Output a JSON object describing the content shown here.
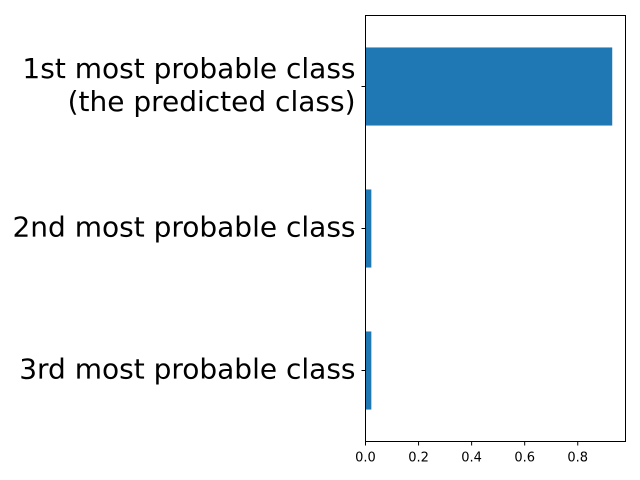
{
  "chart_data": {
    "type": "bar",
    "orientation": "horizontal",
    "categories": [
      [
        "1st most probable class",
        "(the predicted class)"
      ],
      [
        "2nd most probable class"
      ],
      [
        "3rd most probable class"
      ]
    ],
    "values": [
      0.93,
      0.022,
      0.022
    ],
    "xlim": [
      0,
      0.98
    ],
    "xticks": [
      0.0,
      0.2,
      0.4,
      0.6,
      0.8
    ],
    "xtick_labels": [
      "0.0",
      "0.2",
      "0.4",
      "0.6",
      "0.8"
    ],
    "title": "",
    "xlabel": "",
    "ylabel": "",
    "grid": false,
    "bar_color": "#1f77b4"
  }
}
